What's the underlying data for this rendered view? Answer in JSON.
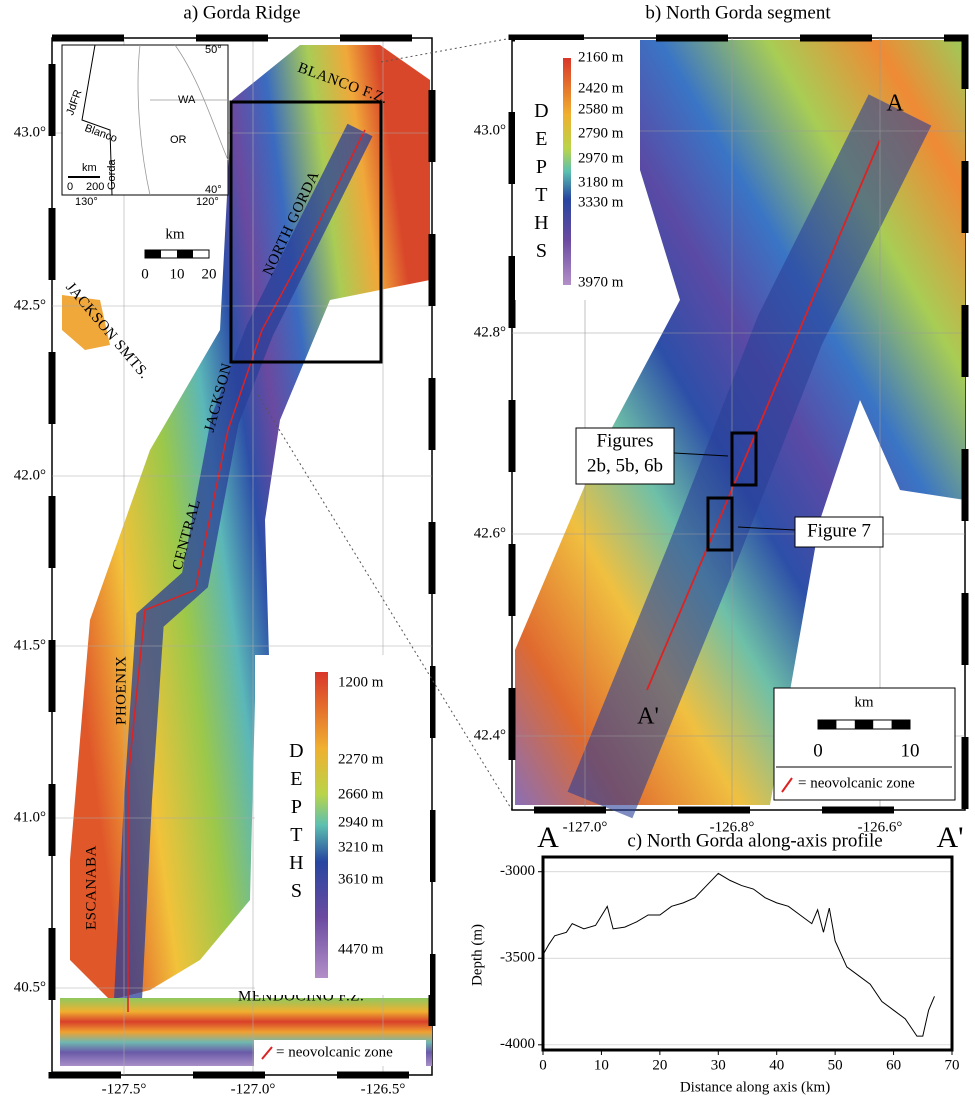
{
  "panel_a": {
    "title": "a) Gorda Ridge",
    "lat_labels": [
      "43.0°",
      "42.5°",
      "42.0°",
      "41.5°",
      "41.0°",
      "40.5°"
    ],
    "lon_labels": [
      "-127.5°",
      "-127.0°",
      "-126.5°"
    ],
    "features": [
      "BLANCO F.Z.",
      "NORTH GORDA",
      "JACKSON SMTS.",
      "JACKSON",
      "CENTRAL",
      "PHOENIX",
      "ESCANABA",
      "MENDOCINO F.Z."
    ],
    "inset": {
      "labels": [
        "WA",
        "OR",
        "JdFR",
        "Blanco",
        "Gorda",
        "km",
        "0",
        "200"
      ],
      "lon_labels": [
        "130°",
        "120°"
      ],
      "lat_labels": [
        "50°",
        "40°"
      ]
    },
    "scale": {
      "unit": "km",
      "ticks": [
        "0",
        "10",
        "20"
      ]
    },
    "legend": {
      "title": "DEPTHS",
      "levels": [
        "1200 m",
        "2270 m",
        "2660 m",
        "2940 m",
        "3210 m",
        "3610 m",
        "4470 m"
      ]
    },
    "key": "= neovolcanic zone"
  },
  "panel_b": {
    "title": "b) North Gorda segment",
    "lat_labels": [
      "43.0°",
      "42.8°",
      "42.6°",
      "42.4°"
    ],
    "lon_labels": [
      "-127.0°",
      "-126.8°",
      "-126.6°"
    ],
    "features": [
      "A",
      "A'"
    ],
    "callouts": [
      [
        "Figures",
        "2b, 5b, 6b"
      ],
      [
        "Figure 7"
      ]
    ],
    "scale": {
      "unit": "km",
      "ticks": [
        "0",
        "10"
      ]
    },
    "legend": {
      "title": "DEPTHS",
      "levels": [
        "2160 m",
        "2420 m",
        "2580 m",
        "2790 m",
        "2970 m",
        "3180 m",
        "3330 m",
        "3970 m"
      ]
    },
    "key": "= neovolcanic zone"
  },
  "chart_data": {
    "type": "line",
    "title": "c) North Gorda along-axis profile",
    "annotations": [
      "A",
      "A'"
    ],
    "x_label": "Distance along axis (km)",
    "y_label": "Depth (m)",
    "x": [
      0,
      1,
      2,
      4,
      5,
      7,
      9,
      11,
      12,
      14,
      16,
      18,
      20,
      22,
      24,
      26,
      28,
      30,
      32,
      34,
      36,
      38,
      40,
      42,
      44,
      46,
      47,
      48,
      49,
      50,
      52,
      54,
      56,
      58,
      60,
      62,
      63,
      64,
      65,
      66,
      67
    ],
    "values": [
      -3480,
      -3420,
      -3370,
      -3350,
      -3300,
      -3330,
      -3310,
      -3200,
      -3330,
      -3320,
      -3290,
      -3250,
      -3250,
      -3200,
      -3180,
      -3150,
      -3080,
      -3010,
      -3050,
      -3080,
      -3100,
      -3150,
      -3180,
      -3200,
      -3250,
      -3300,
      -3220,
      -3350,
      -3210,
      -3400,
      -3550,
      -3600,
      -3650,
      -3750,
      -3800,
      -3850,
      -3900,
      -3950,
      -3950,
      -3800,
      -3720
    ],
    "color": "#000000",
    "xlim": [
      0,
      70
    ],
    "xticks": [
      0,
      10,
      20,
      30,
      40,
      50,
      60,
      70
    ],
    "ylim": [
      -4030,
      -2915
    ],
    "yticks": [
      -3000,
      -3500,
      -4000
    ],
    "grid": true
  }
}
